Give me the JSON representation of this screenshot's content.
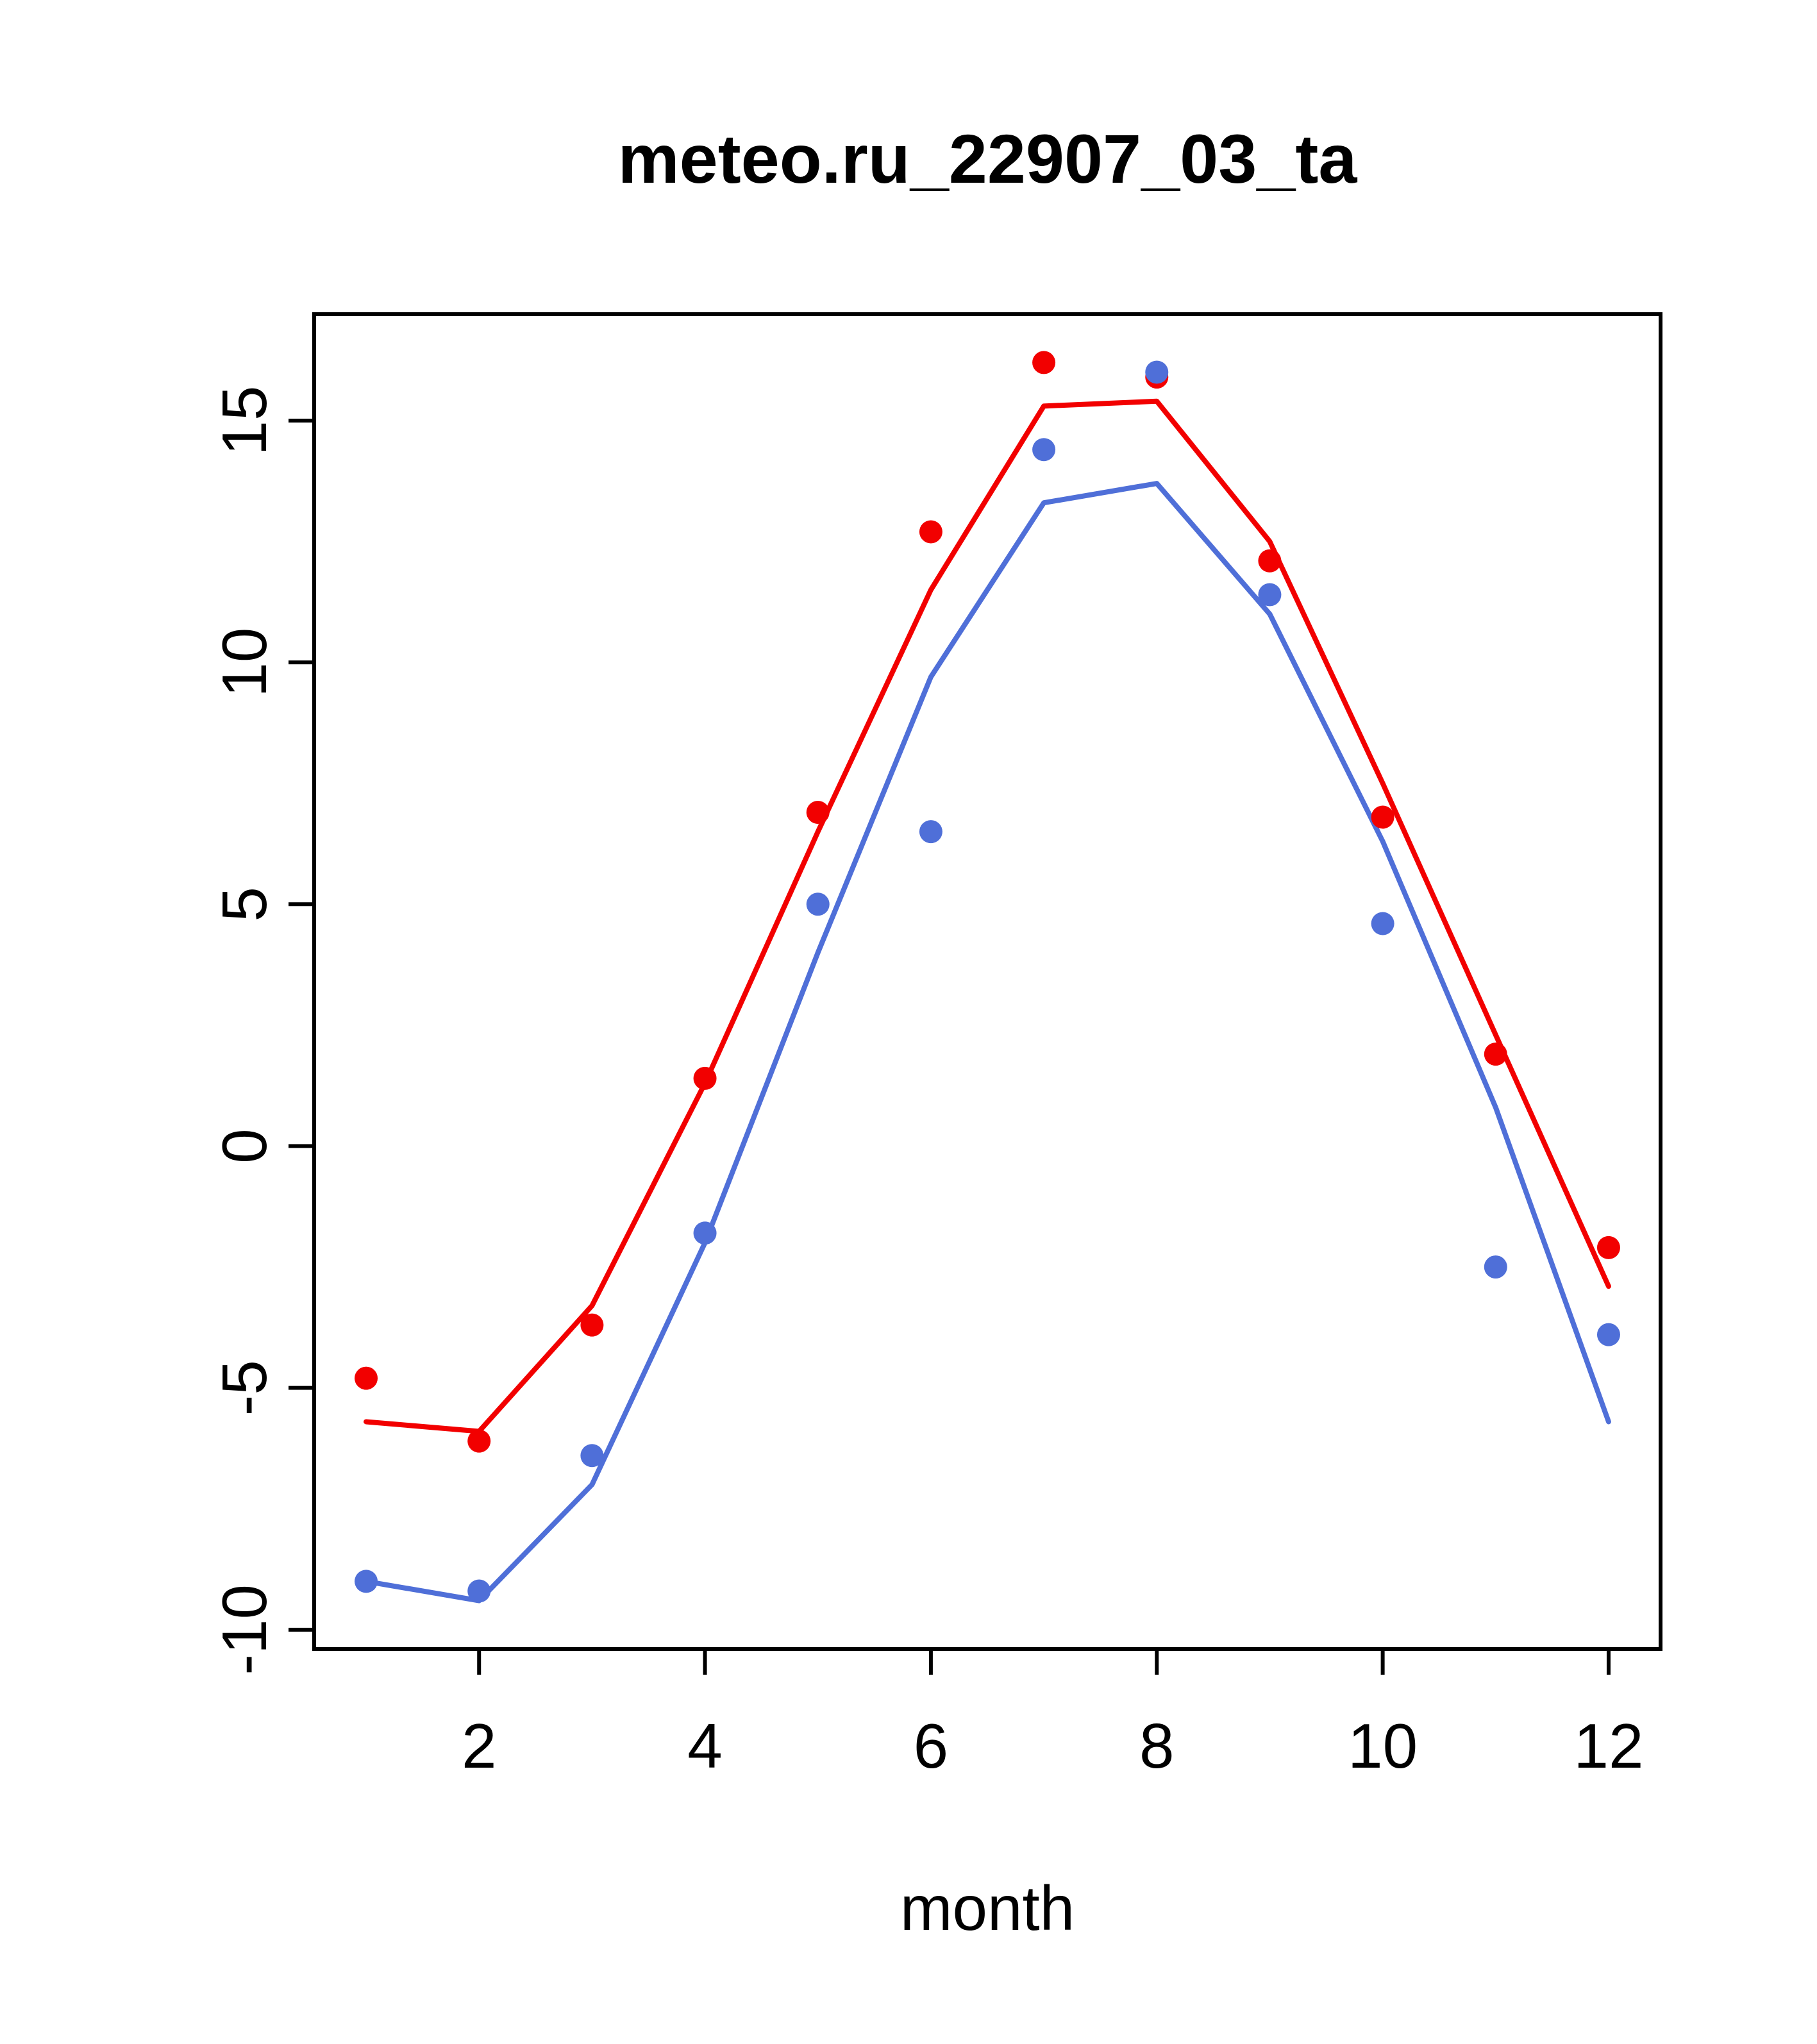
{
  "chart_data": {
    "type": "line",
    "title": "meteo.ru_22907_03_ta",
    "xlabel": "month",
    "ylabel": "",
    "x": [
      1,
      2,
      3,
      4,
      5,
      6,
      7,
      8,
      9,
      10,
      11,
      12
    ],
    "xlim": [
      0.54,
      12.46
    ],
    "ylim": [
      -10.4,
      17.2
    ],
    "xticks": [
      2,
      4,
      6,
      8,
      10,
      12
    ],
    "yticks": [
      -10,
      -5,
      0,
      5,
      10,
      15
    ],
    "grid": false,
    "legend": "none",
    "colors": {
      "red": "#f20000",
      "blue": "#4f6fd8",
      "axis": "#000000"
    },
    "series": [
      {
        "name": "red-line",
        "type": "line",
        "color": "#f20000",
        "values": [
          -5.7,
          -5.9,
          -3.3,
          1.3,
          6.5,
          11.5,
          15.3,
          15.4,
          12.5,
          7.5,
          2.3,
          -2.9
        ]
      },
      {
        "name": "blue-line",
        "type": "line",
        "color": "#4f6fd8",
        "values": [
          -9.0,
          -9.4,
          -7.0,
          -2.0,
          4.0,
          9.7,
          13.3,
          13.7,
          11.0,
          6.3,
          0.8,
          -5.7
        ]
      },
      {
        "name": "red-points",
        "type": "scatter",
        "color": "#f20000",
        "values": [
          -4.8,
          -6.1,
          -3.7,
          1.4,
          6.9,
          12.7,
          16.2,
          15.9,
          12.1,
          6.8,
          1.9,
          -2.1
        ]
      },
      {
        "name": "blue-points",
        "type": "scatter",
        "color": "#4f6fd8",
        "values": [
          -9.0,
          -9.2,
          -6.4,
          -1.8,
          5.0,
          6.5,
          14.4,
          16.0,
          11.4,
          4.6,
          -2.5,
          -3.9
        ]
      }
    ]
  }
}
